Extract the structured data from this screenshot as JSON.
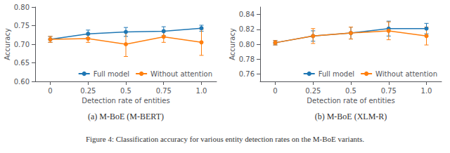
{
  "chart_data": [
    {
      "type": "line",
      "subtitle": "(a) M-BoE (M-BERT)",
      "xlabel": "Detection rate of entities",
      "ylabel": "Accuracy",
      "x": [
        0,
        0.25,
        0.5,
        0.75,
        1.0
      ],
      "xlim": [
        -0.1,
        1.1
      ],
      "xticks": [
        0,
        0.25,
        0.5,
        0.75,
        {
          "value": 1.0,
          "label": "1.0"
        }
      ],
      "ylim": [
        0.6,
        0.8
      ],
      "yticks": [
        {
          "value": 0.6,
          "label": "0.60"
        },
        0.65,
        {
          "value": 0.7,
          "label": "0.70"
        },
        0.75,
        {
          "value": 0.8,
          "label": "0.80"
        }
      ],
      "grid": false,
      "legend": "lower right",
      "series": [
        {
          "name": "Full model",
          "color": "#1f77b4",
          "marker": "circle",
          "line_style": "solid",
          "values": [
            0.713,
            0.728,
            0.733,
            0.735,
            0.743
          ],
          "errors": [
            0.008,
            0.01,
            0.012,
            0.012,
            0.008
          ]
        },
        {
          "name": "Without attention",
          "color": "#ff7f0e",
          "marker": "circle",
          "line_style": "solid",
          "values": [
            0.713,
            0.715,
            0.7,
            0.72,
            0.705
          ],
          "errors": [
            0.008,
            0.01,
            0.033,
            0.015,
            0.035
          ]
        }
      ]
    },
    {
      "type": "line",
      "subtitle": "(b) M-BoE (XLM-R)",
      "xlabel": "Detection rate of entities",
      "ylabel": "Accuracy",
      "x": [
        0,
        0.25,
        0.5,
        0.75,
        1.0
      ],
      "xlim": [
        -0.1,
        1.1
      ],
      "xticks": [
        0,
        0.25,
        0.5,
        0.75,
        {
          "value": 1.0,
          "label": "1.0"
        }
      ],
      "ylim": [
        0.75,
        0.85
      ],
      "yticks": [
        0.76,
        0.78,
        {
          "value": 0.8,
          "label": "0.80"
        },
        0.82,
        0.84
      ],
      "grid": false,
      "legend": "lower right",
      "series": [
        {
          "name": "Full model",
          "color": "#1f77b4",
          "marker": "circle",
          "line_style": "solid",
          "values": [
            0.802,
            0.811,
            0.815,
            0.821,
            0.821
          ],
          "errors": [
            0.003,
            0.007,
            0.008,
            0.01,
            0.007
          ]
        },
        {
          "name": "Without attention",
          "color": "#ff7f0e",
          "marker": "circle",
          "line_style": "solid",
          "values": [
            0.802,
            0.811,
            0.815,
            0.818,
            0.811
          ],
          "errors": [
            0.003,
            0.01,
            0.008,
            0.012,
            0.012
          ]
        }
      ]
    }
  ],
  "caption": "Figure 4: Classification accuracy for various entity detection rates on the M-BoE variants."
}
